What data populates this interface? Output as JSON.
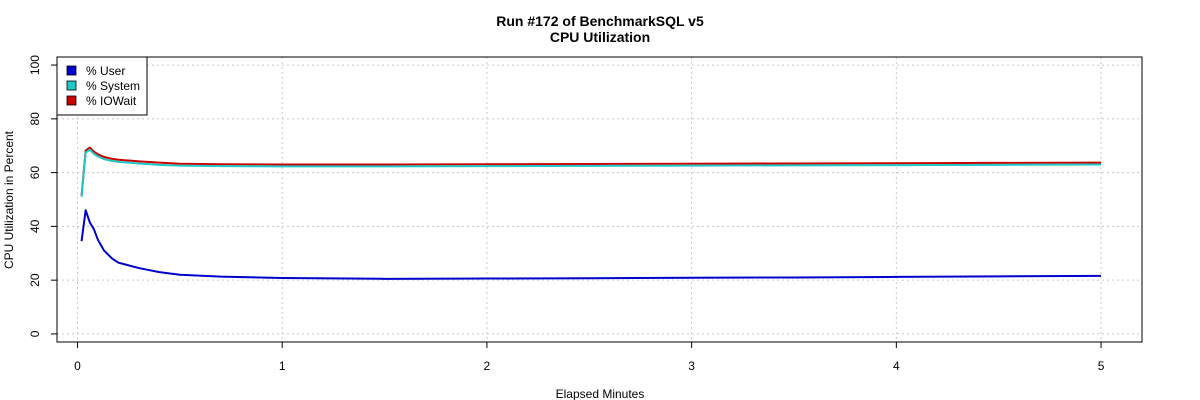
{
  "chart_data": {
    "type": "line",
    "title": "Run #172 of BenchmarkSQL v5",
    "subtitle": "CPU Utilization",
    "xlabel": "Elapsed Minutes",
    "ylabel": "CPU Utilization in Percent",
    "xlim": [
      -0.1,
      5.2
    ],
    "ylim": [
      -3,
      103
    ],
    "xticks": [
      0,
      1,
      2,
      3,
      4,
      5
    ],
    "yticks": [
      0,
      20,
      40,
      60,
      80,
      100
    ],
    "grid": true,
    "legend_position": "top-left",
    "series": [
      {
        "name": "% User",
        "color": "#0000cd",
        "x": [
          0.02,
          0.04,
          0.06,
          0.08,
          0.1,
          0.13,
          0.17,
          0.2,
          0.25,
          0.3,
          0.4,
          0.5,
          0.7,
          1.0,
          1.5,
          2.0,
          2.5,
          3.0,
          3.5,
          4.0,
          4.5,
          5.0
        ],
        "y": [
          34.5,
          46.0,
          41.5,
          39.0,
          35.0,
          31.0,
          28.0,
          26.5,
          25.5,
          24.5,
          23.0,
          22.0,
          21.3,
          20.8,
          20.5,
          20.6,
          20.7,
          20.9,
          21.0,
          21.2,
          21.4,
          21.6
        ]
      },
      {
        "name": "% System",
        "color": "#20c8c8",
        "x": [
          0.02,
          0.04,
          0.06,
          0.08,
          0.1,
          0.13,
          0.17,
          0.2,
          0.25,
          0.3,
          0.4,
          0.5,
          0.7,
          1.0,
          1.5,
          2.0,
          2.5,
          3.0,
          3.5,
          4.0,
          4.5,
          5.0
        ],
        "y": [
          51.0,
          67.5,
          68.5,
          67.0,
          66.0,
          65.0,
          64.3,
          64.0,
          63.7,
          63.4,
          62.9,
          62.6,
          62.4,
          62.3,
          62.3,
          62.4,
          62.5,
          62.6,
          62.7,
          62.8,
          62.9,
          63.0
        ]
      },
      {
        "name": "% IOWait",
        "color": "#cd0000",
        "x": [
          0.02,
          0.04,
          0.06,
          0.08,
          0.1,
          0.13,
          0.17,
          0.2,
          0.25,
          0.3,
          0.4,
          0.5,
          0.7,
          1.0,
          1.5,
          2.0,
          2.5,
          3.0,
          3.5,
          4.0,
          4.5,
          5.0
        ],
        "y": [
          51.5,
          68.2,
          69.3,
          67.8,
          66.8,
          65.8,
          65.1,
          64.8,
          64.5,
          64.2,
          63.7,
          63.3,
          63.1,
          63.0,
          63.0,
          63.1,
          63.2,
          63.3,
          63.4,
          63.5,
          63.6,
          63.7
        ]
      }
    ]
  }
}
